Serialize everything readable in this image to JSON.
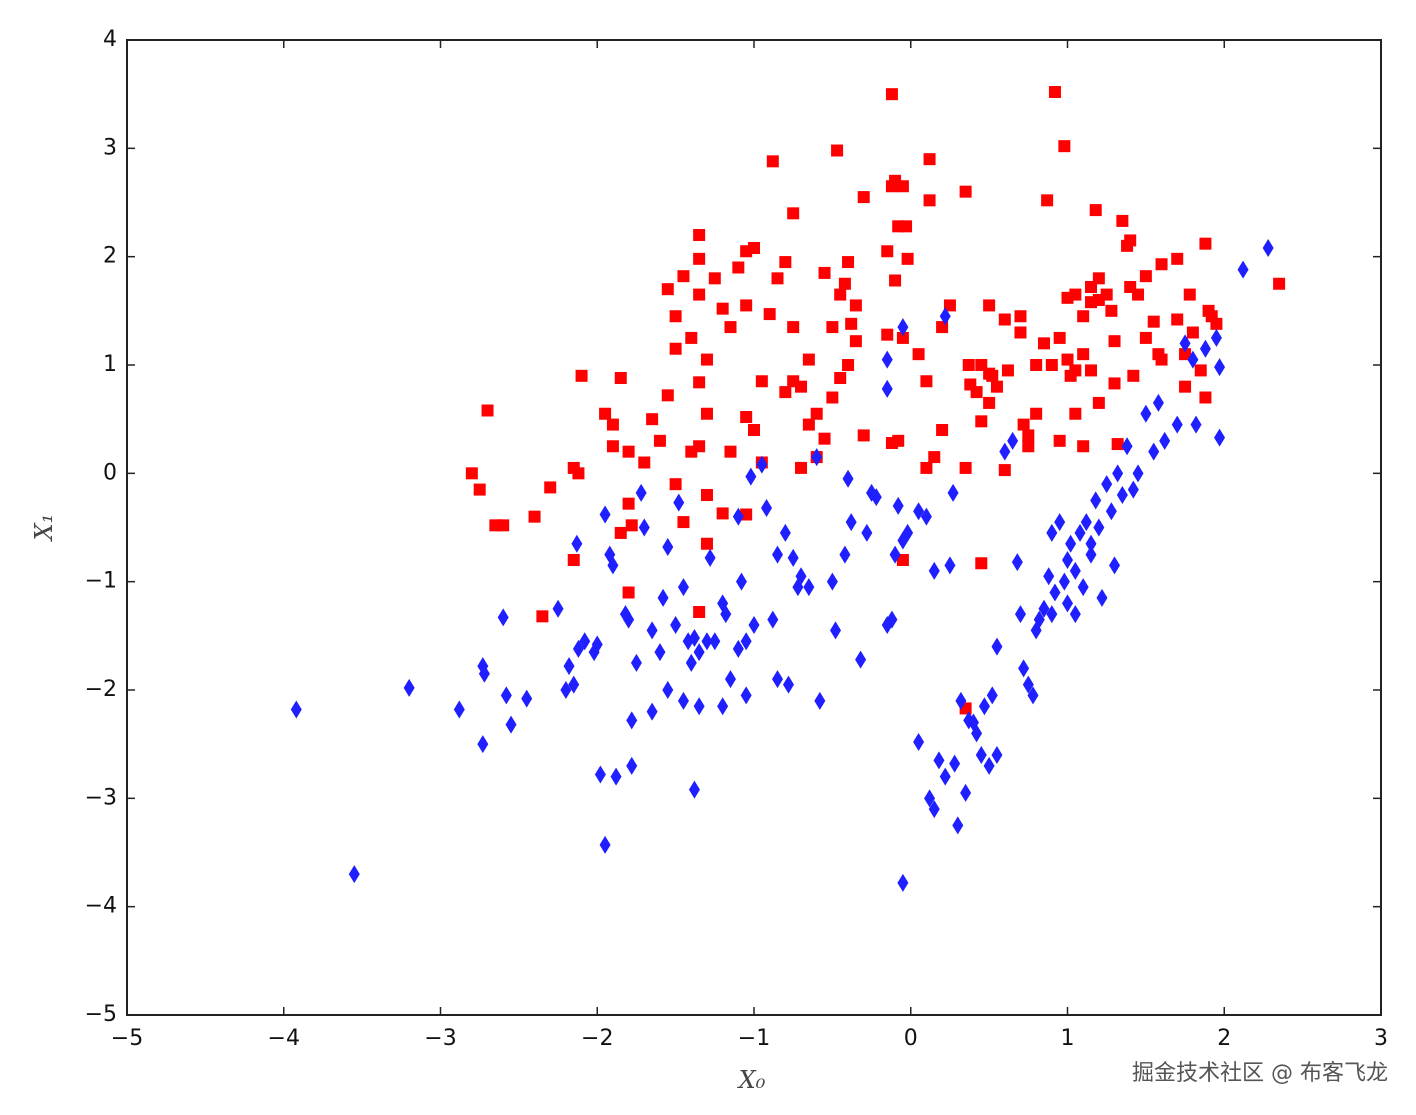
{
  "chart_data": {
    "type": "scatter",
    "x_label": "X₀",
    "y_label": "X₁",
    "watermark": "掘金技术社区 @ 布客飞龙",
    "xlim": [
      -5,
      3
    ],
    "ylim": [
      -5,
      4
    ],
    "xticks": [
      {
        "value": -5,
        "label": "−5"
      },
      {
        "value": -4,
        "label": "−4"
      },
      {
        "value": -3,
        "label": "−3"
      },
      {
        "value": -2,
        "label": "−2"
      },
      {
        "value": -1,
        "label": "−1"
      },
      0,
      1,
      2,
      3
    ],
    "yticks": [
      {
        "value": -5,
        "label": "−5"
      },
      {
        "value": -4,
        "label": "−4"
      },
      {
        "value": -3,
        "label": "−3"
      },
      {
        "value": -2,
        "label": "−2"
      },
      {
        "value": -1,
        "label": "−1"
      },
      0,
      1,
      2,
      3,
      4
    ],
    "grid": false,
    "series": [
      {
        "color": "#ff0000",
        "marker": "square",
        "x": [
          -2.8,
          -2.75,
          -2.7,
          -2.65,
          -2.6,
          -2.4,
          -2.3,
          -2.35,
          -2.15,
          -2.12,
          -2.15,
          -2.1,
          -1.95,
          -1.9,
          -1.9,
          -1.85,
          -1.8,
          -1.8,
          -1.8,
          -1.85,
          -1.78,
          -1.7,
          -1.65,
          -1.6,
          -1.55,
          -1.5,
          -1.55,
          -1.5,
          -1.45,
          -1.4,
          -1.35,
          -1.35,
          -1.3,
          -1.2,
          -1.35,
          -1.3,
          -1.5,
          -1.4,
          -1.45,
          -1.3,
          -1.35,
          -1.3,
          -1.2,
          -1.15,
          -1.25,
          -1.15,
          -1.35,
          -1.35,
          -1.1,
          -1.05,
          -1.0,
          -1.05,
          -0.9,
          -0.95,
          -1.05,
          -1.0,
          -0.95,
          -1.05,
          -0.88,
          -0.85,
          -0.8,
          -0.75,
          -0.75,
          -0.75,
          -0.8,
          -0.7,
          -0.65,
          -0.7,
          -0.65,
          -0.6,
          -0.55,
          -0.5,
          -0.47,
          -0.45,
          -0.4,
          -0.42,
          -0.38,
          -0.35,
          -0.45,
          -0.4,
          -0.5,
          -0.55,
          -0.6,
          -0.3,
          -0.3,
          -0.35,
          -0.15,
          -0.15,
          -0.12,
          -0.12,
          -0.1,
          -0.05,
          -0.08,
          -0.03,
          -0.02,
          -0.1,
          -0.05,
          -0.12,
          -0.08,
          -0.05,
          0.05,
          0.1,
          0.12,
          0.12,
          0.2,
          0.2,
          0.25,
          0.1,
          0.15,
          0.35,
          0.37,
          0.38,
          0.35,
          0.42,
          0.45,
          0.5,
          0.5,
          0.52,
          0.55,
          0.6,
          0.62,
          0.7,
          0.7,
          0.72,
          0.75,
          0.75,
          0.8,
          0.8,
          0.85,
          0.87,
          0.9,
          0.92,
          0.95,
          0.95,
          0.98,
          1.0,
          1.0,
          1.02,
          1.05,
          1.05,
          1.05,
          1.1,
          1.1,
          1.1,
          1.15,
          1.15,
          1.15,
          1.2,
          1.18,
          1.2,
          1.2,
          1.25,
          1.28,
          1.3,
          1.3,
          1.32,
          1.35,
          1.38,
          1.4,
          1.4,
          1.42,
          1.45,
          1.5,
          1.5,
          1.55,
          1.58,
          1.6,
          1.6,
          1.7,
          1.7,
          1.75,
          1.75,
          1.78,
          1.8,
          1.85,
          1.88,
          1.9,
          1.92,
          1.95,
          1.88,
          2.35,
          0.35,
          0.45,
          0.6,
          0.45,
          0.5
        ],
        "values": [
          0.0,
          -0.15,
          0.58,
          -0.48,
          -0.48,
          -0.4,
          -0.13,
          -1.32,
          0.05,
          0.0,
          -0.8,
          0.9,
          0.55,
          0.25,
          0.45,
          0.88,
          0.2,
          -0.28,
          -1.1,
          -0.55,
          -0.48,
          0.1,
          0.5,
          0.3,
          0.72,
          1.15,
          1.7,
          1.45,
          1.82,
          1.25,
          1.65,
          0.25,
          1.05,
          1.52,
          0.84,
          0.55,
          -0.1,
          0.2,
          -0.45,
          -0.65,
          -1.28,
          -0.2,
          -0.37,
          0.2,
          1.8,
          1.35,
          2.2,
          1.98,
          1.9,
          2.05,
          2.08,
          1.55,
          1.47,
          0.85,
          0.52,
          0.4,
          0.1,
          -0.38,
          2.88,
          1.8,
          1.95,
          2.4,
          1.35,
          0.85,
          0.75,
          0.8,
          0.45,
          0.05,
          1.05,
          0.55,
          1.85,
          1.35,
          2.98,
          1.65,
          1.95,
          1.75,
          1.38,
          1.55,
          0.88,
          1.0,
          0.7,
          0.32,
          0.15,
          2.55,
          0.35,
          1.22,
          1.28,
          2.05,
          3.5,
          2.65,
          2.7,
          2.65,
          2.28,
          2.28,
          1.98,
          1.78,
          1.25,
          0.28,
          0.3,
          -0.8,
          1.1,
          0.85,
          2.9,
          2.52,
          1.35,
          0.4,
          1.55,
          0.05,
          0.15,
          0.05,
          1.0,
          0.82,
          2.6,
          0.75,
          0.48,
          0.65,
          1.55,
          0.9,
          0.8,
          1.42,
          0.95,
          1.45,
          1.3,
          0.45,
          0.35,
          0.25,
          1.0,
          0.55,
          1.2,
          2.52,
          1.0,
          3.52,
          1.25,
          0.3,
          3.02,
          1.05,
          1.62,
          0.9,
          1.65,
          0.55,
          0.95,
          0.25,
          1.1,
          1.45,
          1.58,
          0.95,
          1.72,
          1.6,
          2.43,
          0.65,
          1.8,
          1.65,
          1.5,
          1.22,
          0.83,
          0.27,
          2.33,
          2.1,
          2.15,
          1.72,
          0.9,
          1.65,
          1.25,
          1.82,
          1.4,
          1.1,
          1.05,
          1.93,
          1.98,
          1.42,
          1.1,
          0.8,
          1.65,
          1.3,
          0.95,
          2.12,
          1.5,
          1.45,
          1.38,
          0.7,
          1.75,
          -2.17,
          -0.83,
          0.03,
          1.0,
          0.92
        ]
      },
      {
        "color": "#1f1fff",
        "marker": "diamond",
        "x": [
          -3.92,
          -3.55,
          -3.2,
          -2.88,
          -2.73,
          -2.72,
          -2.73,
          -2.6,
          -2.58,
          -2.55,
          -2.45,
          -2.25,
          -2.2,
          -2.15,
          -2.18,
          -2.12,
          -2.08,
          -2.13,
          -2.0,
          -2.02,
          -1.98,
          -1.95,
          -1.95,
          -1.92,
          -1.9,
          -1.88,
          -1.82,
          -1.8,
          -1.78,
          -1.78,
          -1.75,
          -1.72,
          -1.7,
          -1.65,
          -1.65,
          -1.6,
          -1.58,
          -1.55,
          -1.55,
          -1.5,
          -1.48,
          -1.45,
          -1.45,
          -1.42,
          -1.4,
          -1.38,
          -1.35,
          -1.35,
          -1.38,
          -1.3,
          -1.28,
          -1.25,
          -1.2,
          -1.2,
          -1.18,
          -1.15,
          -1.1,
          -1.1,
          -1.08,
          -1.05,
          -1.05,
          -1.02,
          -1.0,
          -0.95,
          -0.92,
          -0.88,
          -0.85,
          -0.85,
          -0.8,
          -0.78,
          -0.75,
          -0.72,
          -0.7,
          -0.65,
          -0.6,
          -0.58,
          -0.5,
          -0.48,
          -0.42,
          -0.4,
          -0.38,
          -0.32,
          -0.28,
          -0.25,
          -0.22,
          -0.15,
          -0.15,
          -0.15,
          -0.12,
          -0.1,
          -0.05,
          -0.08,
          -0.05,
          -0.02,
          -0.05,
          0.05,
          0.05,
          0.1,
          0.12,
          0.15,
          0.15,
          0.18,
          0.22,
          0.22,
          0.25,
          0.27,
          0.28,
          0.3,
          0.32,
          0.35,
          0.37,
          0.4,
          0.42,
          0.45,
          0.47,
          0.5,
          0.52,
          0.55,
          0.55,
          0.6,
          0.65,
          0.68,
          0.7,
          0.72,
          0.75,
          0.78,
          0.8,
          0.82,
          0.85,
          0.88,
          0.9,
          0.92,
          0.95,
          0.98,
          1.0,
          1.02,
          1.05,
          1.05,
          1.08,
          1.1,
          1.12,
          1.15,
          1.18,
          1.2,
          1.22,
          1.25,
          1.28,
          1.3,
          1.32,
          1.35,
          1.38,
          1.42,
          1.45,
          1.5,
          1.55,
          1.58,
          1.62,
          1.7,
          1.75,
          1.8,
          1.82,
          1.88,
          1.95,
          1.97,
          1.97,
          2.12,
          2.28,
          1.15,
          0.9,
          1.0
        ],
        "values": [
          -2.18,
          -3.7,
          -1.98,
          -2.18,
          -1.78,
          -1.85,
          -2.5,
          -1.33,
          -2.05,
          -2.32,
          -2.08,
          -1.25,
          -2.0,
          -1.95,
          -1.78,
          -1.62,
          -1.55,
          -0.65,
          -1.58,
          -1.65,
          -2.78,
          -3.43,
          -0.38,
          -0.75,
          -0.85,
          -2.8,
          -1.3,
          -1.35,
          -2.28,
          -2.7,
          -1.75,
          -0.18,
          -0.5,
          -1.45,
          -2.2,
          -1.65,
          -1.15,
          -2.0,
          -0.68,
          -1.4,
          -0.27,
          -1.05,
          -2.1,
          -1.55,
          -1.75,
          -1.52,
          -1.65,
          -2.15,
          -2.92,
          -1.55,
          -0.78,
          -1.55,
          -2.15,
          -1.2,
          -1.3,
          -1.9,
          -0.4,
          -1.62,
          -1.0,
          -1.55,
          -2.05,
          -0.03,
          -1.4,
          0.08,
          -0.32,
          -1.35,
          -0.75,
          -1.9,
          -0.55,
          -1.95,
          -0.78,
          -1.05,
          -0.95,
          -1.05,
          0.15,
          -2.1,
          -1.0,
          -1.45,
          -0.75,
          -0.05,
          -0.45,
          -1.72,
          -0.55,
          -0.18,
          -0.22,
          1.05,
          0.78,
          -1.4,
          -1.35,
          -0.75,
          1.35,
          -0.3,
          -0.62,
          -0.55,
          -3.78,
          -2.48,
          -0.35,
          -0.4,
          -3.0,
          -3.1,
          -0.9,
          -2.65,
          -2.8,
          1.45,
          -0.85,
          -0.18,
          -2.68,
          -3.25,
          -2.1,
          -2.95,
          -2.28,
          -2.3,
          -2.4,
          -2.6,
          -2.15,
          -2.7,
          -2.05,
          -2.6,
          -1.6,
          0.2,
          0.3,
          -0.82,
          -1.3,
          -1.8,
          -1.95,
          -2.05,
          -1.45,
          -1.35,
          -1.25,
          -0.95,
          -1.3,
          -1.1,
          -0.45,
          -1.0,
          -0.8,
          -0.65,
          -0.9,
          -1.3,
          -0.55,
          -1.05,
          -0.45,
          -0.75,
          -0.25,
          -0.5,
          -1.15,
          -0.1,
          -0.35,
          -0.85,
          0.0,
          -0.2,
          0.25,
          -0.15,
          0.0,
          0.55,
          0.2,
          0.65,
          0.3,
          0.45,
          1.2,
          1.05,
          0.45,
          1.15,
          1.25,
          0.98,
          0.33,
          1.88,
          2.08,
          -0.65,
          -0.55,
          -1.2
        ]
      }
    ]
  }
}
